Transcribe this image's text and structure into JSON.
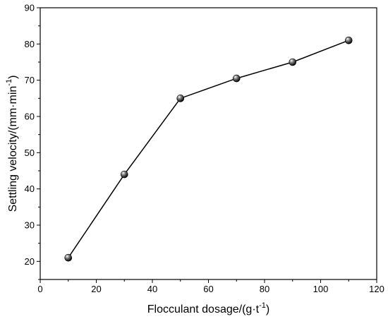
{
  "chart_data": {
    "type": "line",
    "xlabel": "Flocculant dosage/(g·t",
    "xlabel_sup": "-1",
    "xlabel_end": ")",
    "ylabel": "Settling velocity/(mm·min",
    "ylabel_sup": "-1",
    "ylabel_end": ")",
    "xlim": [
      0,
      120
    ],
    "ylim": [
      15,
      90
    ],
    "xticks": [
      0,
      20,
      40,
      60,
      80,
      100,
      120
    ],
    "yticks": [
      20,
      30,
      40,
      50,
      60,
      70,
      80,
      90
    ],
    "grid": false,
    "series": [
      {
        "x": [
          10,
          30,
          50,
          70,
          90,
          110
        ],
        "y": [
          21,
          44,
          65,
          70.5,
          75,
          81
        ],
        "color": "#000000",
        "marker": "sphere"
      }
    ]
  }
}
